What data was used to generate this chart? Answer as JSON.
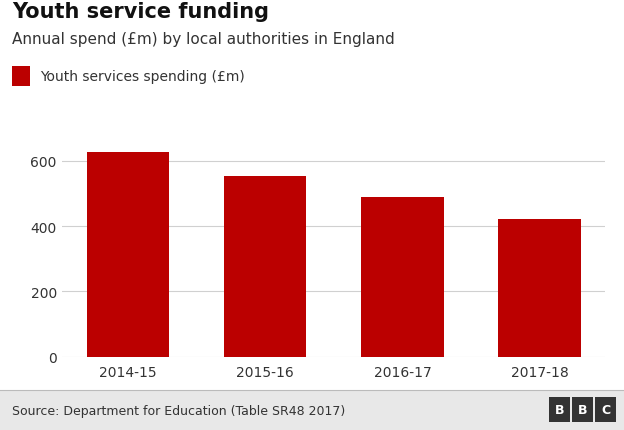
{
  "title": "Youth service funding",
  "subtitle": "Annual spend (£m) by local authorities in England",
  "legend_label": "Youth services spending (£m)",
  "categories": [
    "2014-15",
    "2015-16",
    "2016-17",
    "2017-18"
  ],
  "values": [
    628,
    554,
    489,
    421
  ],
  "bar_color": "#bb0000",
  "background_color": "#ffffff",
  "ylim": [
    0,
    660
  ],
  "yticks": [
    0,
    200,
    400,
    600
  ],
  "source_text": "Source: Department for Education (Table SR48 2017)",
  "bbc_text": "BBC",
  "title_fontsize": 15,
  "subtitle_fontsize": 11,
  "tick_fontsize": 10,
  "legend_fontsize": 10,
  "source_fontsize": 9,
  "grid_color": "#d0d0d0",
  "text_color": "#333333",
  "footer_bg": "#e8e8e8",
  "footer_line_color": "#bbbbbb"
}
